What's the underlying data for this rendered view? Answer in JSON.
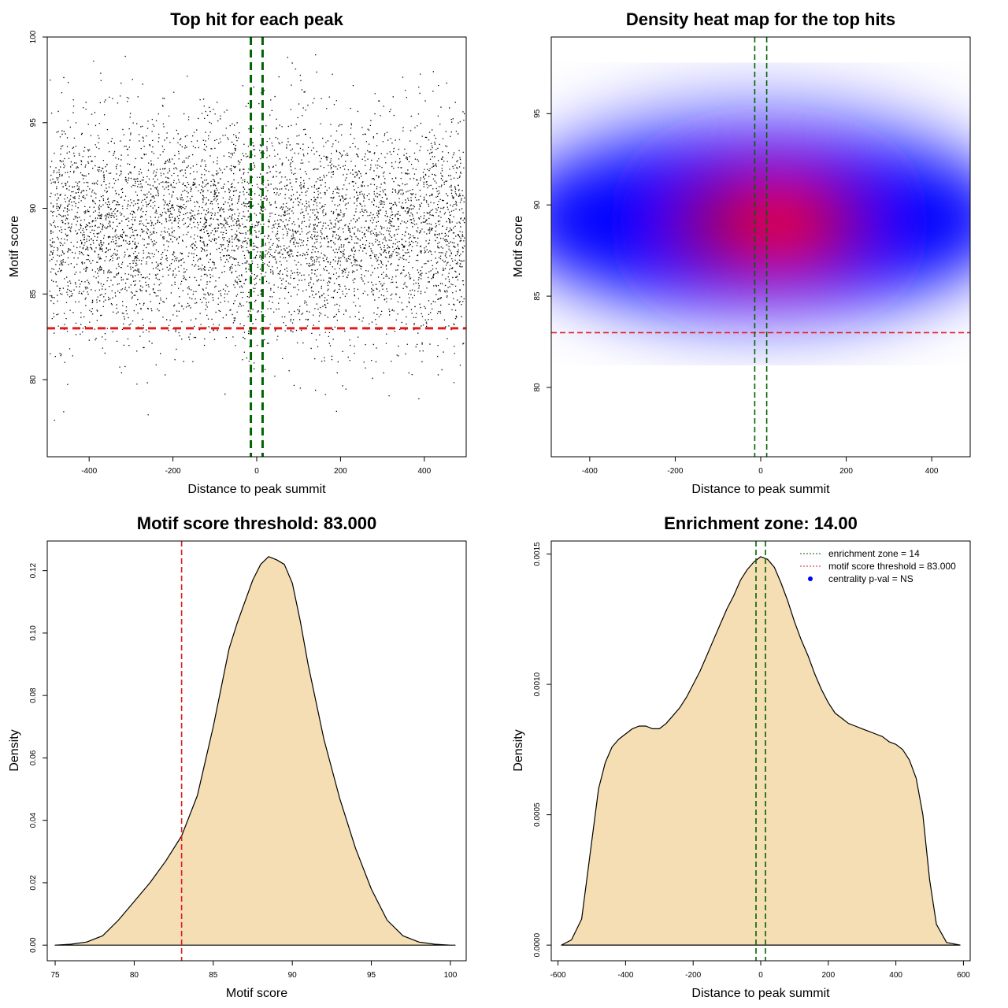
{
  "chart_data": [
    {
      "type": "scatter",
      "title": "Top hit for each peak",
      "xlabel": "Distance to peak summit",
      "ylabel": "Motif score",
      "xlim": [
        -500,
        500
      ],
      "ylim": [
        75.5,
        100
      ],
      "xticks": [
        -400,
        -200,
        0,
        200,
        400
      ],
      "yticks": [
        80,
        85,
        90,
        95,
        100
      ],
      "grid": false,
      "point_cloud": {
        "n_points": 9000,
        "x_range": [
          -495,
          495
        ],
        "y_mean": 88.8,
        "y_sd": 3.2,
        "y_range": [
          76.2,
          99.0
        ]
      },
      "lines": [
        {
          "orientation": "horizontal",
          "value": 83.0,
          "color": "#e31a1c",
          "style": "dashed"
        },
        {
          "orientation": "vertical",
          "value": -14,
          "color": "#006400",
          "style": "dashed"
        },
        {
          "orientation": "vertical",
          "value": 14,
          "color": "#006400",
          "style": "dashed"
        }
      ]
    },
    {
      "type": "heatmap",
      "title": "Density heat map for the top hits",
      "xlabel": "Distance to peak summit",
      "ylabel": "Motif score",
      "xlim": [
        -490,
        490
      ],
      "ylim": [
        76.2,
        99.2
      ],
      "xticks": [
        -400,
        -200,
        0,
        200,
        400
      ],
      "yticks": [
        80,
        85,
        90,
        95
      ],
      "grid": false,
      "colors": {
        "low": "#ffffff",
        "mid": "#0000ff",
        "high": "#ff0000"
      },
      "density_peak": {
        "x": 40,
        "y": 89.0
      },
      "lines": [
        {
          "orientation": "horizontal",
          "value": 83.0,
          "color": "#e31a1c",
          "style": "dashed"
        },
        {
          "orientation": "vertical",
          "value": -14,
          "color": "#006400",
          "style": "dashed"
        },
        {
          "orientation": "vertical",
          "value": 14,
          "color": "#006400",
          "style": "dashed"
        }
      ]
    },
    {
      "type": "area",
      "title": "Motif score threshold: 83.000",
      "xlabel": "Motif score",
      "ylabel": "Density",
      "xlim": [
        74.5,
        101
      ],
      "ylim": [
        -0.005,
        0.1295
      ],
      "xticks": [
        75,
        80,
        85,
        90,
        95,
        100
      ],
      "yticks": [
        0.0,
        0.02,
        0.04,
        0.06,
        0.08,
        0.1,
        0.12
      ],
      "ytick_labels": [
        "0.00",
        "0.02",
        "0.04",
        "0.06",
        "0.08",
        "0.10",
        "0.12"
      ],
      "grid": false,
      "fill_color": "#f5deb3",
      "x": [
        75,
        76,
        77,
        78,
        79,
        80,
        81,
        82,
        83,
        84,
        85,
        86,
        86.5,
        87,
        87.5,
        88,
        88.5,
        89,
        89.5,
        90,
        90.5,
        91,
        92,
        93,
        94,
        95,
        96,
        97,
        98,
        99,
        100,
        100.3
      ],
      "y": [
        0.0,
        0.0003,
        0.001,
        0.003,
        0.008,
        0.014,
        0.02,
        0.027,
        0.035,
        0.048,
        0.07,
        0.095,
        0.103,
        0.11,
        0.117,
        0.122,
        0.1245,
        0.1235,
        0.122,
        0.116,
        0.104,
        0.09,
        0.066,
        0.047,
        0.031,
        0.018,
        0.008,
        0.003,
        0.001,
        0.0003,
        0.0,
        0.0
      ],
      "lines": [
        {
          "orientation": "vertical",
          "value": 83.0,
          "color": "#e31a1c",
          "style": "dashed"
        }
      ]
    },
    {
      "type": "area",
      "title": "Enrichment zone: 14.00",
      "xlabel": "Distance to peak summit",
      "ylabel": "Density",
      "xlim": [
        -620,
        620
      ],
      "ylim": [
        -6e-05,
        0.00155
      ],
      "xticks": [
        -600,
        -400,
        -200,
        0,
        200,
        400,
        600
      ],
      "yticks": [
        0.0,
        0.0005,
        0.001,
        0.0015
      ],
      "ytick_labels": [
        "0.0000",
        "0.0005",
        "0.0010",
        "0.0015"
      ],
      "grid": false,
      "fill_color": "#f5deb3",
      "x": [
        -590,
        -560,
        -530,
        -500,
        -480,
        -460,
        -440,
        -420,
        -400,
        -380,
        -360,
        -340,
        -320,
        -300,
        -280,
        -260,
        -240,
        -220,
        -200,
        -180,
        -160,
        -140,
        -120,
        -100,
        -80,
        -60,
        -40,
        -20,
        0,
        20,
        40,
        60,
        80,
        100,
        120,
        140,
        160,
        180,
        200,
        220,
        240,
        260,
        280,
        300,
        320,
        340,
        360,
        380,
        400,
        420,
        440,
        460,
        480,
        500,
        520,
        550,
        590
      ],
      "y": [
        0.0,
        2e-05,
        0.0001,
        0.0004,
        0.0006,
        0.0007,
        0.00076,
        0.00079,
        0.00081,
        0.00083,
        0.00084,
        0.00084,
        0.00083,
        0.00083,
        0.00085,
        0.00088,
        0.00091,
        0.00095,
        0.001,
        0.00105,
        0.00111,
        0.00117,
        0.00123,
        0.00129,
        0.00134,
        0.0014,
        0.00144,
        0.00147,
        0.00149,
        0.00148,
        0.00145,
        0.00139,
        0.00132,
        0.00124,
        0.00117,
        0.00111,
        0.00104,
        0.00098,
        0.00093,
        0.00089,
        0.00087,
        0.00085,
        0.00084,
        0.00083,
        0.00082,
        0.00081,
        0.0008,
        0.00078,
        0.00077,
        0.00075,
        0.00071,
        0.00064,
        0.0005,
        0.00025,
        8e-05,
        1e-05,
        0.0
      ],
      "lines": [
        {
          "orientation": "vertical",
          "value": -14,
          "color": "#006400",
          "style": "dashed"
        },
        {
          "orientation": "vertical",
          "value": 14,
          "color": "#006400",
          "style": "dashed"
        }
      ],
      "legend": {
        "position": "top-right",
        "items": [
          {
            "label": "enrichment zone = 14",
            "color": "#006400",
            "symbol": "dotted-line"
          },
          {
            "label": "motif score threshold = 83.000",
            "color": "#e31a1c",
            "symbol": "dotted-line"
          },
          {
            "label": "centrality p-val = NS",
            "color": "#0000ff",
            "symbol": "dot"
          }
        ]
      }
    }
  ]
}
